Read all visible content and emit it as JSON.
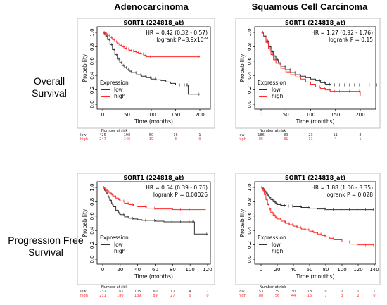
{
  "columns": [
    "Adenocarcinoma",
    "Squamous Cell Carcinoma"
  ],
  "rows": [
    {
      "line1": "Overall",
      "line2": "Survival"
    },
    {
      "line1": "Progression Free",
      "line2": "Survival"
    }
  ],
  "chart_data": [
    {
      "type": "line",
      "title": "SORT1 (224818_at)",
      "hr": "HR = 0.42 (0.32 - 0.57)",
      "logrank_prefix": "logrank  P=3.9x10",
      "logrank_exp": "-9",
      "xlabel": "Time (months)",
      "ylabel": "Probability",
      "xlim": [
        0,
        230
      ],
      "ylim": [
        0,
        1.05
      ],
      "xticks": [
        0,
        50,
        100,
        150,
        200
      ],
      "yticks": [
        0.0,
        0.2,
        0.4,
        0.6,
        0.8,
        1.0
      ],
      "legend": {
        "title": "Expression",
        "position": "bottom-left"
      },
      "series": [
        {
          "name": "low",
          "color": "#333333",
          "x": [
            0,
            3,
            6,
            10,
            15,
            20,
            25,
            30,
            35,
            40,
            45,
            50,
            55,
            60,
            70,
            80,
            90,
            100,
            110,
            120,
            130,
            140,
            150,
            160,
            170,
            175,
            176,
            200
          ],
          "y": [
            1.0,
            0.98,
            0.95,
            0.9,
            0.83,
            0.76,
            0.69,
            0.63,
            0.58,
            0.54,
            0.51,
            0.48,
            0.46,
            0.44,
            0.41,
            0.39,
            0.37,
            0.35,
            0.34,
            0.33,
            0.31,
            0.29,
            0.27,
            0.27,
            0.27,
            0.27,
            0.14,
            0.14
          ]
        },
        {
          "name": "high",
          "color": "#ff2a2a",
          "x": [
            0,
            5,
            10,
            15,
            20,
            25,
            30,
            35,
            40,
            45,
            50,
            55,
            60,
            65,
            70,
            75,
            80,
            85,
            90,
            100,
            200
          ],
          "y": [
            1.0,
            0.98,
            0.96,
            0.93,
            0.9,
            0.87,
            0.84,
            0.82,
            0.8,
            0.78,
            0.77,
            0.75,
            0.74,
            0.73,
            0.72,
            0.71,
            0.7,
            0.68,
            0.66,
            0.66,
            0.66
          ]
        }
      ],
      "risk": {
        "title": "Number at risk",
        "x": [
          0,
          50,
          100,
          150,
          200
        ],
        "rows": [
          {
            "label": "low",
            "values": [
              "425",
              "198",
              "50",
              "16",
              "1"
            ],
            "color": "#333333"
          },
          {
            "label": "high",
            "values": [
              "247",
              "146",
              "19",
              "3",
              "0"
            ],
            "color": "#ff2a2a"
          }
        ]
      }
    },
    {
      "type": "line",
      "title": "SORT1 (224818_at)",
      "hr": "HR = 1.27 (0.92 - 1.76)",
      "logrank_prefix": "logrank P = 0.15",
      "logrank_exp": "",
      "xlabel": "Time (months)",
      "ylabel": "Probability",
      "xlim": [
        0,
        240
      ],
      "ylim": [
        0,
        1.05
      ],
      "xticks": [
        0,
        50,
        100,
        150,
        200
      ],
      "yticks": [
        0.0,
        0.2,
        0.4,
        0.6,
        0.8,
        1.0
      ],
      "legend": {
        "title": "Expression",
        "position": "bottom-left"
      },
      "series": [
        {
          "name": "low",
          "color": "#333333",
          "x": [
            0,
            5,
            10,
            15,
            20,
            25,
            30,
            35,
            40,
            50,
            60,
            70,
            80,
            90,
            100,
            110,
            120,
            130,
            140,
            150,
            160,
            170,
            180,
            190,
            200,
            220,
            235
          ],
          "y": [
            1.0,
            0.95,
            0.88,
            0.8,
            0.73,
            0.67,
            0.62,
            0.57,
            0.53,
            0.48,
            0.44,
            0.41,
            0.39,
            0.37,
            0.35,
            0.33,
            0.3,
            0.28,
            0.27,
            0.27,
            0.27,
            0.27,
            0.27,
            0.27,
            0.27,
            0.27,
            0.27
          ]
        },
        {
          "name": "high",
          "color": "#ff2a2a",
          "x": [
            0,
            5,
            10,
            15,
            20,
            25,
            30,
            40,
            50,
            60,
            70,
            80,
            90,
            100,
            110,
            120,
            130,
            140,
            150,
            160,
            180,
            200
          ],
          "y": [
            1.0,
            0.94,
            0.86,
            0.77,
            0.69,
            0.62,
            0.57,
            0.5,
            0.45,
            0.41,
            0.38,
            0.35,
            0.31,
            0.28,
            0.24,
            0.22,
            0.2,
            0.18,
            0.18,
            0.18,
            0.18,
            0.12
          ]
        }
      ],
      "risk": {
        "title": "Number at risk",
        "x": [
          0,
          50,
          100,
          150,
          200
        ],
        "rows": [
          {
            "label": "low",
            "values": [
              "186",
              "89",
              "23",
              "11",
              "3"
            ],
            "color": "#333333"
          },
          {
            "label": "high",
            "values": [
              "85",
              "31",
              "11",
              "4",
              "1"
            ],
            "color": "#ff2a2a"
          }
        ]
      }
    },
    {
      "type": "line",
      "title": "SORT1 (224818_at)",
      "hr": "HR = 0.54 (0.39 - 0.76)",
      "logrank_prefix": "logrank P = 0.00026",
      "logrank_exp": "",
      "xlabel": "Time (months)",
      "ylabel": "Probability",
      "xlim": [
        0,
        128
      ],
      "ylim": [
        0,
        1.05
      ],
      "xticks": [
        0,
        20,
        40,
        60,
        80,
        100,
        120
      ],
      "yticks": [
        0.0,
        0.2,
        0.4,
        0.6,
        0.8,
        1.0
      ],
      "legend": {
        "title": "Expression",
        "position": "bottom-left"
      },
      "series": [
        {
          "name": "low",
          "color": "#333333",
          "x": [
            0,
            2,
            4,
            6,
            8,
            10,
            12,
            15,
            18,
            20,
            25,
            30,
            35,
            40,
            45,
            50,
            60,
            70,
            80,
            90,
            100,
            104,
            105,
            120
          ],
          "y": [
            1.0,
            0.96,
            0.92,
            0.87,
            0.82,
            0.77,
            0.73,
            0.68,
            0.64,
            0.62,
            0.59,
            0.57,
            0.56,
            0.55,
            0.54,
            0.54,
            0.53,
            0.52,
            0.52,
            0.52,
            0.52,
            0.52,
            0.35,
            0.35
          ]
        },
        {
          "name": "high",
          "color": "#ff2a2a",
          "x": [
            0,
            2,
            4,
            6,
            8,
            10,
            12,
            15,
            18,
            20,
            25,
            30,
            35,
            40,
            50,
            60,
            70,
            80,
            90,
            100,
            110,
            118
          ],
          "y": [
            1.0,
            0.98,
            0.96,
            0.94,
            0.92,
            0.9,
            0.88,
            0.85,
            0.83,
            0.81,
            0.78,
            0.76,
            0.74,
            0.73,
            0.71,
            0.7,
            0.7,
            0.69,
            0.69,
            0.69,
            0.69,
            0.69
          ]
        }
      ],
      "risk": {
        "title": "Number at risk",
        "x": [
          0,
          20,
          40,
          60,
          80,
          100,
          120
        ],
        "rows": [
          {
            "label": "low",
            "values": [
              "232",
              "161",
              "105",
              "60",
              "17",
              "4",
              "2"
            ],
            "color": "#333333"
          },
          {
            "label": "high",
            "values": [
              "211",
              "180",
              "139",
              "89",
              "27",
              "9",
              "0"
            ],
            "color": "#ff2a2a"
          }
        ]
      }
    },
    {
      "type": "line",
      "title": "SORT1 (224818_at)",
      "hr": "HR = 1.88 (1.06 - 3.35)",
      "logrank_prefix": "logrank P = 0.028",
      "logrank_exp": "",
      "xlabel": "Time (months)",
      "ylabel": "Probability",
      "xlim": [
        0,
        150
      ],
      "ylim": [
        0,
        1.05
      ],
      "xticks": [
        0,
        20,
        40,
        60,
        80,
        100,
        120,
        140
      ],
      "yticks": [
        0.0,
        0.2,
        0.4,
        0.6,
        0.8,
        1.0
      ],
      "legend": {
        "title": "Expression",
        "position": "bottom-left"
      },
      "series": [
        {
          "name": "low",
          "color": "#333333",
          "x": [
            0,
            2,
            4,
            6,
            8,
            10,
            12,
            15,
            18,
            20,
            25,
            30,
            35,
            40,
            50,
            60,
            70,
            80,
            90,
            100,
            110,
            120,
            130,
            140
          ],
          "y": [
            1.0,
            0.98,
            0.95,
            0.92,
            0.89,
            0.86,
            0.83,
            0.8,
            0.78,
            0.76,
            0.75,
            0.74,
            0.74,
            0.73,
            0.72,
            0.71,
            0.7,
            0.69,
            0.69,
            0.69,
            0.69,
            0.69,
            0.69,
            0.69
          ]
        },
        {
          "name": "high",
          "color": "#ff2a2a",
          "x": [
            0,
            2,
            4,
            6,
            8,
            10,
            12,
            15,
            18,
            20,
            25,
            30,
            35,
            40,
            45,
            50,
            55,
            60,
            65,
            70,
            75,
            80,
            85,
            90,
            100,
            110,
            120,
            130,
            140
          ],
          "y": [
            1.0,
            0.96,
            0.9,
            0.83,
            0.76,
            0.7,
            0.65,
            0.61,
            0.58,
            0.56,
            0.53,
            0.5,
            0.48,
            0.46,
            0.44,
            0.42,
            0.41,
            0.39,
            0.37,
            0.35,
            0.33,
            0.31,
            0.29,
            0.27,
            0.24,
            0.21,
            0.2,
            0.2,
            0.2
          ]
        }
      ],
      "risk": {
        "title": "Number at risk",
        "x": [
          0,
          20,
          40,
          60,
          80,
          100,
          120,
          140
        ],
        "rows": [
          {
            "label": "low",
            "values": [
              "53",
              "39",
              "30",
              "18",
              "9",
              "2",
              "1",
              "1"
            ],
            "color": "#333333"
          },
          {
            "label": "high",
            "values": [
              "88",
              "56",
              "44",
              "16",
              "7",
              "3",
              "2",
              "0"
            ],
            "color": "#ff2a2a"
          }
        ]
      }
    }
  ]
}
